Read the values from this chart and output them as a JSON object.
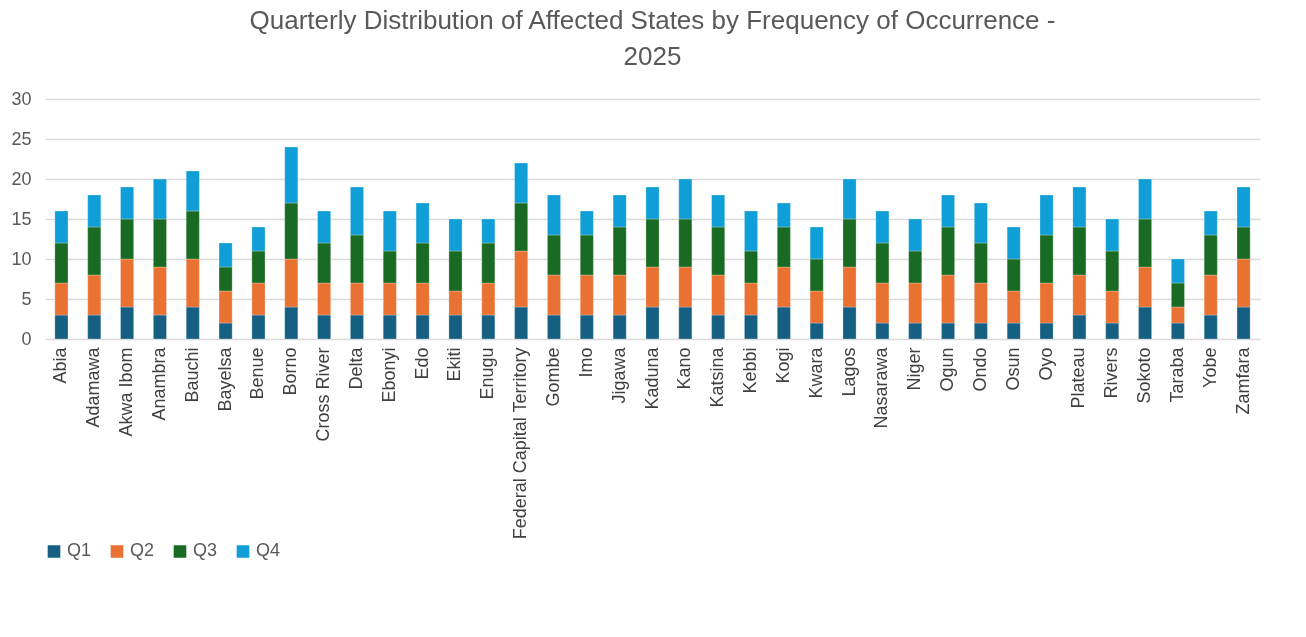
{
  "chart_data": {
    "type": "bar",
    "title": "Quarterly Distribution of Affected States by Frequency of Occurrence - 2025",
    "categories": [
      "Abia",
      "Adamawa",
      "Akwa Ibom",
      "Anambra",
      "Bauchi",
      "Bayelsa",
      "Benue",
      "Borno",
      "Cross River",
      "Delta",
      "Ebonyi",
      "Edo",
      "Ekiti",
      "Enugu",
      "Federal Capital Territory",
      "Gombe",
      "Imo",
      "Jigawa",
      "Kaduna",
      "Kano",
      "Katsina",
      "Kebbi",
      "Kogi",
      "Kwara",
      "Lagos",
      "Nasarawa",
      "Niger",
      "Ogun",
      "Ondo",
      "Osun",
      "Oyo",
      "Plateau",
      "Rivers",
      "Sokoto",
      "Taraba",
      "Yobe",
      "Zamfara"
    ],
    "series": [
      {
        "name": "Q1",
        "color": "#156082",
        "values": [
          3,
          3,
          4,
          3,
          4,
          2,
          3,
          4,
          3,
          3,
          3,
          3,
          3,
          3,
          4,
          3,
          3,
          3,
          4,
          4,
          3,
          3,
          4,
          2,
          4,
          2,
          2,
          2,
          2,
          2,
          2,
          3,
          2,
          4,
          2,
          3,
          4
        ]
      },
      {
        "name": "Q2",
        "color": "#e97132",
        "values": [
          4,
          5,
          6,
          6,
          6,
          4,
          4,
          6,
          4,
          4,
          4,
          4,
          3,
          4,
          7,
          5,
          5,
          5,
          5,
          5,
          5,
          4,
          5,
          4,
          5,
          5,
          5,
          6,
          5,
          4,
          5,
          5,
          4,
          5,
          2,
          5,
          6
        ]
      },
      {
        "name": "Q3",
        "color": "#196b24",
        "values": [
          5,
          6,
          5,
          6,
          6,
          3,
          4,
          7,
          5,
          6,
          4,
          5,
          5,
          5,
          6,
          5,
          5,
          6,
          6,
          6,
          6,
          4,
          5,
          4,
          6,
          5,
          4,
          6,
          5,
          4,
          6,
          6,
          5,
          6,
          3,
          5,
          4
        ]
      },
      {
        "name": "Q4",
        "color": "#0f9ed5",
        "values": [
          4,
          4,
          4,
          5,
          5,
          3,
          3,
          7,
          4,
          6,
          5,
          5,
          4,
          3,
          5,
          5,
          3,
          4,
          4,
          5,
          4,
          5,
          3,
          4,
          5,
          4,
          4,
          4,
          5,
          4,
          5,
          5,
          4,
          5,
          3,
          3,
          5
        ]
      }
    ],
    "stacked": true,
    "ylim": [
      0,
      30
    ],
    "yticks": [
      0,
      5,
      10,
      15,
      20,
      25,
      30
    ],
    "grid": "y",
    "legend": "bottom"
  }
}
